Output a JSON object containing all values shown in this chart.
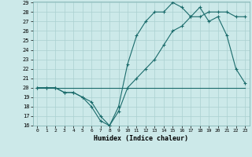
{
  "xlabel": "Humidex (Indice chaleur)",
  "bg_color": "#cce9e9",
  "grid_color": "#aad0d0",
  "line_color": "#1a6b6b",
  "xlim": [
    -0.5,
    23.5
  ],
  "ylim": [
    16,
    29
  ],
  "xticks": [
    0,
    1,
    2,
    3,
    4,
    5,
    6,
    7,
    8,
    9,
    10,
    11,
    12,
    13,
    14,
    15,
    16,
    17,
    18,
    19,
    20,
    21,
    22,
    23
  ],
  "yticks": [
    16,
    17,
    18,
    19,
    20,
    21,
    22,
    23,
    24,
    25,
    26,
    27,
    28,
    29
  ],
  "line1_x": [
    0,
    1,
    2,
    3,
    4,
    5,
    6,
    7,
    8,
    9,
    10,
    11,
    12,
    13,
    14,
    15,
    16,
    17,
    18,
    19,
    20,
    21,
    22,
    23
  ],
  "line1_y": [
    20,
    20,
    20,
    19.5,
    19.5,
    19,
    18,
    16.5,
    16,
    18,
    22.5,
    25.5,
    27,
    28,
    28,
    29,
    28.5,
    27.5,
    28.5,
    27,
    27.5,
    25.5,
    22,
    20.5
  ],
  "line2_x": [
    0,
    1,
    2,
    3,
    4,
    5,
    6,
    7,
    8,
    9,
    10,
    11,
    12,
    13,
    14,
    15,
    16,
    17,
    18,
    19,
    20,
    21,
    22,
    23
  ],
  "line2_y": [
    20,
    20,
    20,
    20,
    20,
    20,
    20,
    20,
    20,
    20,
    20,
    20,
    20,
    20,
    20,
    20,
    20,
    20,
    20,
    20,
    20,
    20,
    20,
    20
  ],
  "line3_x": [
    0,
    1,
    2,
    3,
    4,
    5,
    6,
    7,
    8,
    9,
    10,
    11,
    12,
    13,
    14,
    15,
    16,
    17,
    18,
    19,
    20,
    21,
    22,
    23
  ],
  "line3_y": [
    20,
    20,
    20,
    19.5,
    19.5,
    19,
    18.5,
    17,
    16,
    17.5,
    20,
    21,
    22,
    23,
    24.5,
    26,
    26.5,
    27.5,
    27.5,
    28,
    28,
    28,
    27.5,
    27.5
  ]
}
